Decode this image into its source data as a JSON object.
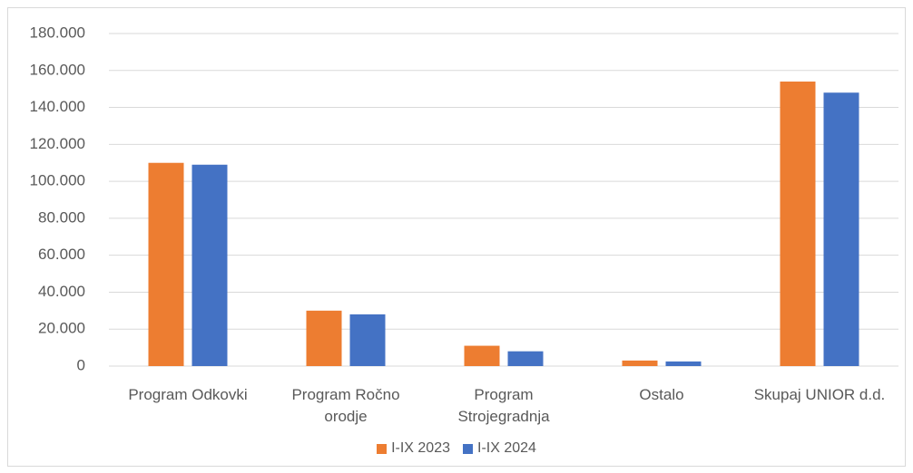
{
  "chart_data": {
    "type": "bar",
    "categories": [
      "Program Odkovki",
      "Program Ročno orodje",
      "Program Strojegradnja",
      "Ostalo",
      "Skupaj UNIOR d.d."
    ],
    "series": [
      {
        "name": "I-IX 2023",
        "color": "#ed7d31",
        "values": [
          110000,
          30000,
          11000,
          3000,
          154000
        ]
      },
      {
        "name": "I-IX 2024",
        "color": "#4472c4",
        "values": [
          109000,
          28000,
          8000,
          2500,
          148000
        ]
      }
    ],
    "ylim": [
      0,
      180000
    ],
    "yticks": [
      0,
      {
        "value": 20000,
        "label": "20.000"
      },
      {
        "value": 40000,
        "label": "40.000"
      },
      {
        "value": 60000,
        "label": "60.000"
      },
      {
        "value": 80000,
        "label": "80.000"
      },
      {
        "value": 100000,
        "label": "100.000"
      },
      {
        "value": 120000,
        "label": "120.000"
      },
      {
        "value": 140000,
        "label": "140.000"
      },
      {
        "value": 160000,
        "label": "160.000"
      },
      {
        "value": 180000,
        "label": "180.000"
      }
    ],
    "grid": true,
    "legend": "bottom"
  }
}
